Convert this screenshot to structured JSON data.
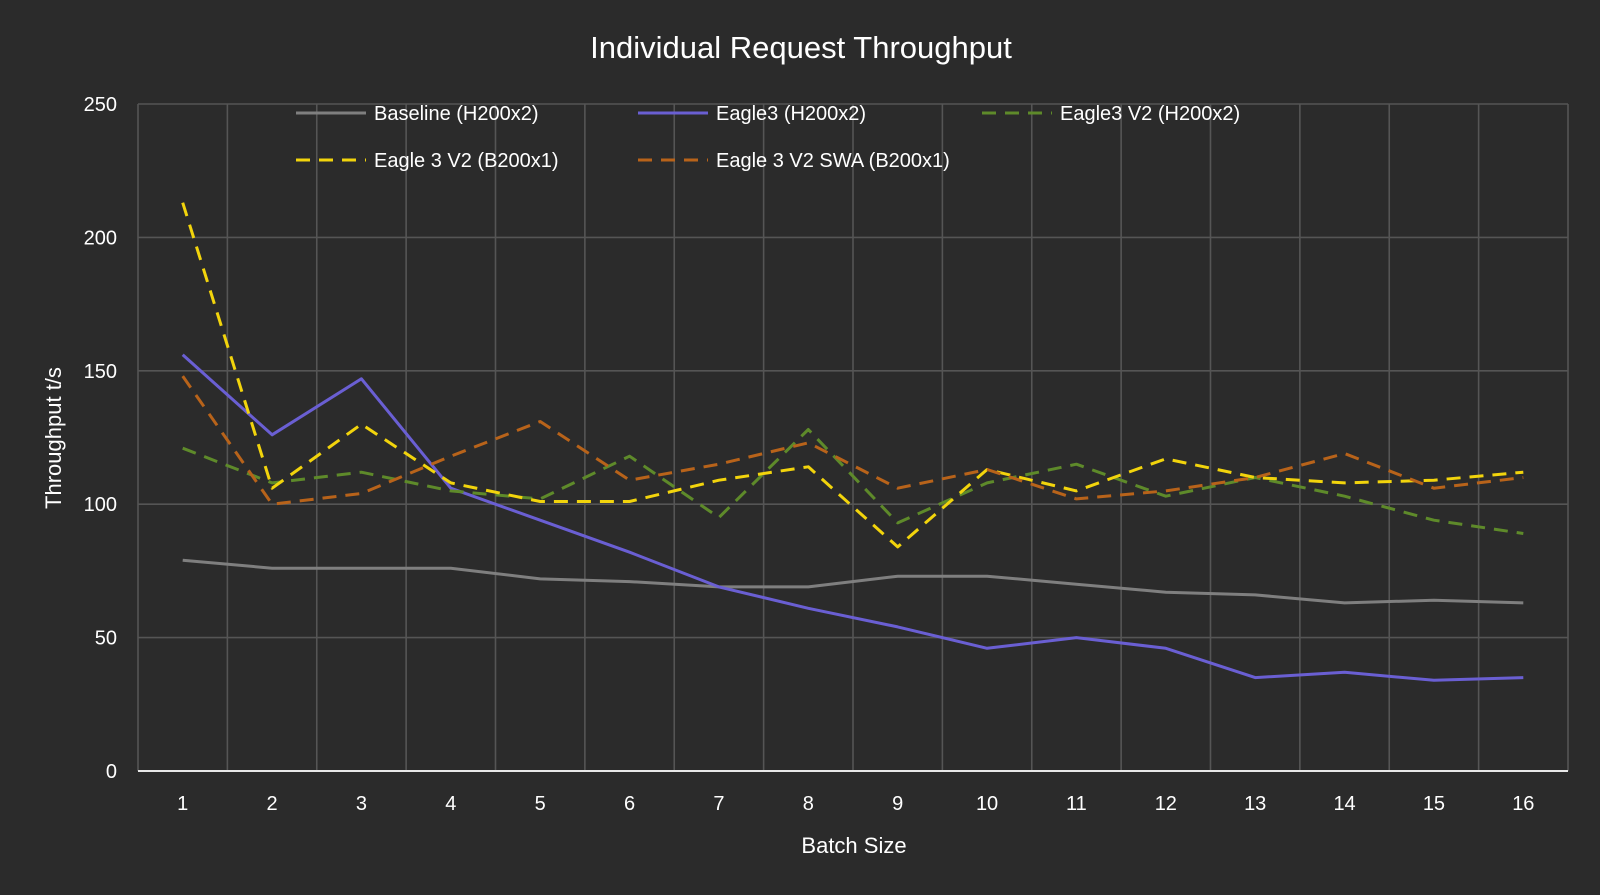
{
  "chart_data": {
    "type": "line",
    "title": "Individual Request Throughput",
    "xlabel": "Batch Size",
    "ylabel": "Throughput t/s",
    "ylim": [
      0,
      250
    ],
    "yticks": [
      0,
      50,
      100,
      150,
      200,
      250
    ],
    "categories": [
      "1",
      "2",
      "3",
      "4",
      "5",
      "6",
      "7",
      "8",
      "9",
      "10",
      "11",
      "12",
      "13",
      "14",
      "15",
      "16"
    ],
    "grid": true,
    "legend_position": "top",
    "background": "#2b2b2b",
    "series": [
      {
        "name": "Baseline (H200x2)",
        "color": "#7f7f7f",
        "style": "solid",
        "values": [
          79,
          76,
          76,
          76,
          72,
          71,
          69,
          69,
          73,
          73,
          70,
          67,
          66,
          63,
          64,
          63
        ]
      },
      {
        "name": "Eagle3 (H200x2)",
        "color": "#6a5fd3",
        "style": "solid",
        "values": [
          156,
          126,
          147,
          106,
          94,
          82,
          69,
          61,
          54,
          46,
          50,
          46,
          35,
          37,
          34,
          35
        ]
      },
      {
        "name": "Eagle3 V2 (H200x2)",
        "color": "#5e8a2a",
        "style": "dashed",
        "values": [
          121,
          108,
          112,
          105,
          102,
          118,
          95,
          128,
          93,
          108,
          115,
          103,
          110,
          103,
          94,
          89
        ]
      },
      {
        "name": "Eagle 3 V2 (B200x1)",
        "color": "#f2d40c",
        "style": "dashed",
        "values": [
          213,
          106,
          130,
          108,
          101,
          101,
          109,
          114,
          84,
          113,
          105,
          117,
          110,
          108,
          109,
          112
        ]
      },
      {
        "name": "Eagle 3 V2 SWA (B200x1)",
        "color": "#b8631a",
        "style": "dashed",
        "values": [
          148,
          100,
          104,
          118,
          131,
          109,
          115,
          123,
          106,
          113,
          102,
          105,
          110,
          119,
          106,
          110
        ]
      }
    ]
  }
}
